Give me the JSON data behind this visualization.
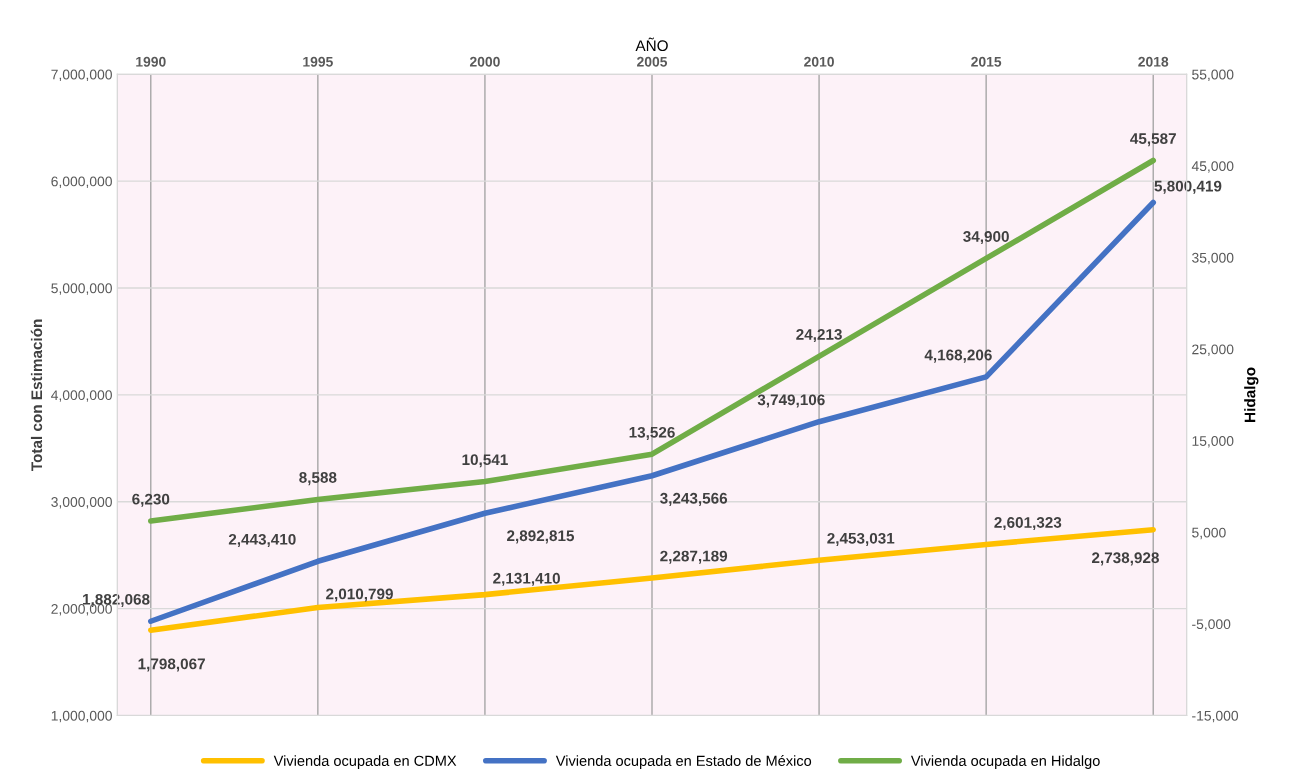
{
  "chart_data": {
    "type": "line",
    "xlabel": "AÑO",
    "ylabel": "Total con Estimación",
    "y2label": "Hidalgo",
    "categories": [
      "1990",
      "1995",
      "2000",
      "2005",
      "2010",
      "2015",
      "2018"
    ],
    "series": [
      {
        "name": "Vivienda ocupada en CDMX",
        "color": "#ffc000",
        "values": [
          1798067,
          2010799,
          2131410,
          2287189,
          2453031,
          2601323,
          2738928
        ],
        "value_labels": [
          "1,798,067",
          "2,010,799",
          "2,131,410",
          "2,287,189",
          "2,453,031",
          "2,601,323",
          "2,738,928"
        ]
      },
      {
        "name": "Vivienda ocupada en Estado de México",
        "color": "#4472c4",
        "values": [
          1882068,
          2443410,
          2892815,
          3243566,
          3749106,
          4168206,
          5800419
        ],
        "value_labels": [
          "1,882,068",
          "2,443,410",
          "2,892,815",
          "3,243,566",
          "3,749,106",
          "4,168,206",
          "5,800,419"
        ]
      },
      {
        "name": "Vivienda ocupada en Hidalgo",
        "color": "#70ad47",
        "axis": "y2",
        "values": [
          6230,
          8588,
          10541,
          13526,
          24213,
          34900,
          45587
        ],
        "value_labels": [
          "6,230",
          "8,588",
          "10,541",
          "13,526",
          "24,213",
          "34,900",
          "45,587"
        ]
      }
    ],
    "ylim": [
      1000000,
      7000000
    ],
    "yticks": [
      {
        "value": 1000000,
        "label": "1,000,000"
      },
      {
        "value": 2000000,
        "label": "2,000,000"
      },
      {
        "value": 3000000,
        "label": "3,000,000"
      },
      {
        "value": 4000000,
        "label": "4,000,000"
      },
      {
        "value": 5000000,
        "label": "5,000,000"
      },
      {
        "value": 6000000,
        "label": "6,000,000"
      },
      {
        "value": 7000000,
        "label": "7,000,000"
      }
    ],
    "y2lim": [
      -15000,
      55000
    ],
    "y2ticks": [
      {
        "value": -15000,
        "label": "-15,000"
      },
      {
        "value": -5000,
        "label": "-5,000"
      },
      {
        "value": 5000,
        "label": "5,000"
      },
      {
        "value": 15000,
        "label": "15,000"
      },
      {
        "value": 25000,
        "label": "25,000"
      },
      {
        "value": 35000,
        "label": "35,000"
      },
      {
        "value": 45000,
        "label": "45,000"
      },
      {
        "value": 55000,
        "label": "55,000"
      }
    ],
    "grid": true,
    "legend": "bottom",
    "line_style": "solid",
    "marker": "none"
  }
}
